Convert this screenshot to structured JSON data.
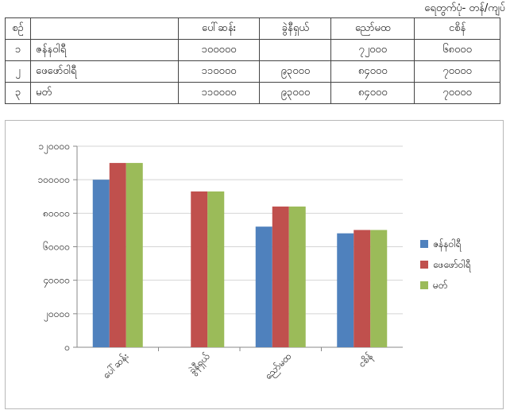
{
  "unit_label": "ရေတွက်ပုံ- တန်/ကျပ်",
  "table": {
    "header": [
      "စဉ်",
      "",
      "ပေါ်ဆန်း",
      "ခွဲနီရှယ်",
      "ညော်မထ",
      "ငစိန်"
    ],
    "rows": [
      [
        "၁",
        "ဇန်နဝါရီ",
        "၁၀၀၀၀၀",
        "",
        "၇၂၀၀၀",
        "၆၈၀၀၀"
      ],
      [
        "၂",
        "ဖေဖော်ဝါရီ",
        "၁၁၀၀၀၀",
        "၉၃၀၀၀",
        "၈၄၀၀၀",
        "၇၀၀၀၀"
      ],
      [
        "၃",
        "မတ်",
        "၁၁၀၀၀၀",
        "၉၃၀၀၀",
        "၈၄၀၀၀",
        "၇၀၀၀၀"
      ]
    ]
  },
  "chart_data": {
    "type": "bar",
    "categories": [
      "ပေါ်ဆန်း",
      "ခွဲနီရှယ်",
      "ညော်မထ",
      "ငစိန်"
    ],
    "series": [
      {
        "name": "ဇန်နဝါရီ",
        "color": "#4f81bd",
        "values": [
          100000,
          0,
          72000,
          68000
        ]
      },
      {
        "name": "ဖေဖော်ဝါရီ",
        "color": "#c0504d",
        "values": [
          110000,
          93000,
          84000,
          70000
        ]
      },
      {
        "name": "မတ်",
        "color": "#9bbb59",
        "values": [
          110000,
          93000,
          84000,
          70000
        ]
      }
    ],
    "ylim": [
      0,
      120000
    ],
    "ytick_values": [
      0,
      20000,
      40000,
      60000,
      80000,
      100000,
      120000
    ],
    "ytick_labels": [
      "၀",
      "၂၀၀၀၀",
      "၄၀၀၀၀",
      "၆၀၀၀၀",
      "၈၀၀၀၀",
      "၁၀၀၀၀၀",
      "၁၂၀၀၀၀"
    ],
    "legend_position": "right",
    "grid": true,
    "title": "",
    "xlabel": "",
    "ylabel": ""
  }
}
